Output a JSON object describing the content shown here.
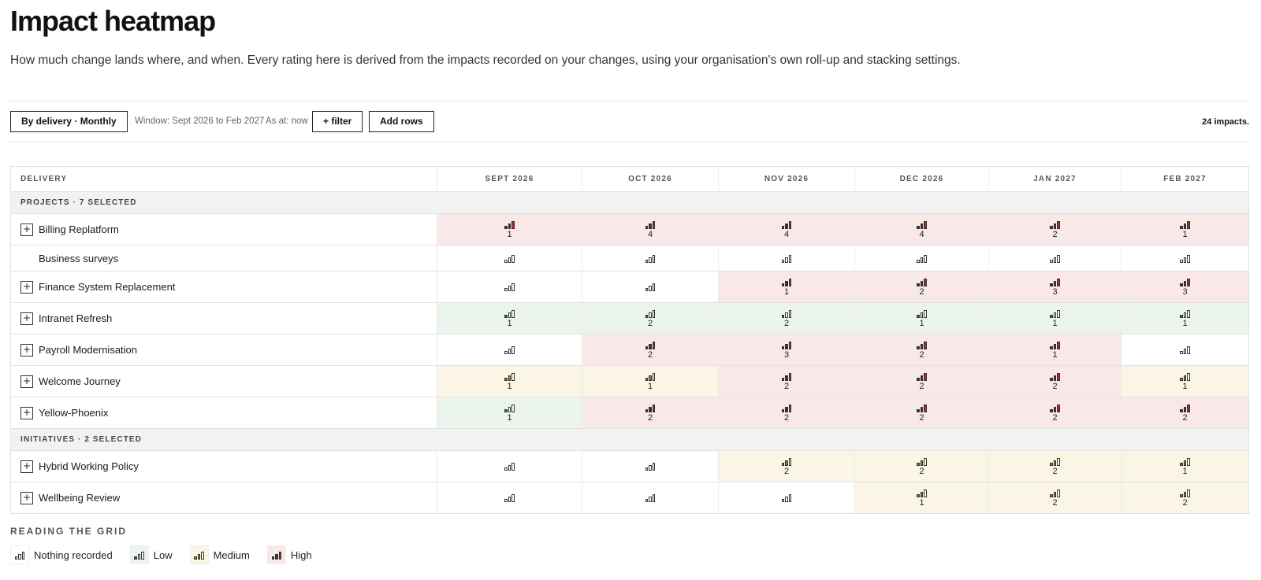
{
  "header": {
    "title": "Impact heatmap",
    "subtitle": "How much change lands where, and when. Every rating here is derived from the impacts recorded on your changes, using your organisation's own roll-up and stacking settings."
  },
  "toolbar": {
    "view_label": "By delivery · Monthly",
    "window_text": "Window: Sept 2026 to Feb 2027",
    "as_at_text": "As at: now",
    "filter_label": "+ filter",
    "add_rows_label": "Add rows",
    "impact_count": "24 impacts."
  },
  "grid": {
    "first_col_header": "DELIVERY",
    "months": [
      "SEPT 2026",
      "OCT 2026",
      "NOV 2026",
      "DEC 2026",
      "JAN 2027",
      "FEB 2027"
    ],
    "groups": [
      {
        "label": "PROJECTS · 7 SELECTED",
        "rows": [
          {
            "name": "Billing Replatform",
            "expandable": true,
            "cells": [
              {
                "level": "high",
                "count": "1"
              },
              {
                "level": "high",
                "count": "4"
              },
              {
                "level": "high",
                "count": "4"
              },
              {
                "level": "high",
                "count": "4"
              },
              {
                "level": "high",
                "count": "2"
              },
              {
                "level": "high",
                "count": "1"
              }
            ]
          },
          {
            "name": "Business surveys",
            "expandable": false,
            "cells": [
              {
                "level": "none",
                "count": ""
              },
              {
                "level": "none",
                "count": ""
              },
              {
                "level": "none",
                "count": ""
              },
              {
                "level": "none",
                "count": ""
              },
              {
                "level": "none",
                "count": ""
              },
              {
                "level": "none",
                "count": ""
              }
            ]
          },
          {
            "name": "Finance System Replacement",
            "expandable": true,
            "cells": [
              {
                "level": "none",
                "count": ""
              },
              {
                "level": "none",
                "count": ""
              },
              {
                "level": "high",
                "count": "1"
              },
              {
                "level": "high",
                "count": "2"
              },
              {
                "level": "high",
                "count": "3"
              },
              {
                "level": "high",
                "count": "3"
              }
            ]
          },
          {
            "name": "Intranet Refresh",
            "expandable": true,
            "cells": [
              {
                "level": "low",
                "count": "1"
              },
              {
                "level": "low",
                "count": "2"
              },
              {
                "level": "low",
                "count": "2"
              },
              {
                "level": "low",
                "count": "1"
              },
              {
                "level": "low",
                "count": "1"
              },
              {
                "level": "low",
                "count": "1"
              }
            ]
          },
          {
            "name": "Payroll Modernisation",
            "expandable": true,
            "cells": [
              {
                "level": "none",
                "count": ""
              },
              {
                "level": "high",
                "count": "2"
              },
              {
                "level": "high",
                "count": "3"
              },
              {
                "level": "high",
                "count": "2"
              },
              {
                "level": "high",
                "count": "1"
              },
              {
                "level": "none",
                "count": ""
              }
            ]
          },
          {
            "name": "Welcome Journey",
            "expandable": true,
            "cells": [
              {
                "level": "medium",
                "count": "1"
              },
              {
                "level": "medium",
                "count": "1"
              },
              {
                "level": "high",
                "count": "2"
              },
              {
                "level": "high",
                "count": "2"
              },
              {
                "level": "high",
                "count": "2"
              },
              {
                "level": "medium",
                "count": "1"
              }
            ]
          },
          {
            "name": "Yellow-Phoenix",
            "expandable": true,
            "cells": [
              {
                "level": "low",
                "count": "1"
              },
              {
                "level": "high",
                "count": "2"
              },
              {
                "level": "high",
                "count": "2"
              },
              {
                "level": "high",
                "count": "2"
              },
              {
                "level": "high",
                "count": "2"
              },
              {
                "level": "high",
                "count": "2"
              }
            ]
          }
        ]
      },
      {
        "label": "INITIATIVES · 2 SELECTED",
        "rows": [
          {
            "name": "Hybrid Working Policy",
            "expandable": true,
            "cells": [
              {
                "level": "none",
                "count": ""
              },
              {
                "level": "none",
                "count": ""
              },
              {
                "level": "medium",
                "count": "2"
              },
              {
                "level": "medium",
                "count": "2"
              },
              {
                "level": "medium",
                "count": "2"
              },
              {
                "level": "medium",
                "count": "1"
              }
            ]
          },
          {
            "name": "Wellbeing Review",
            "expandable": true,
            "cells": [
              {
                "level": "none",
                "count": ""
              },
              {
                "level": "none",
                "count": ""
              },
              {
                "level": "none",
                "count": ""
              },
              {
                "level": "medium",
                "count": "1"
              },
              {
                "level": "medium",
                "count": "2"
              },
              {
                "level": "medium",
                "count": "2"
              }
            ]
          }
        ]
      }
    ]
  },
  "legend": {
    "title": "READING THE GRID",
    "items": [
      {
        "level": "none",
        "label": "Nothing recorded"
      },
      {
        "level": "low",
        "label": "Low"
      },
      {
        "level": "medium",
        "label": "Medium"
      },
      {
        "level": "high",
        "label": "High"
      }
    ]
  },
  "colors": {
    "low_bg": "#ebf5ee",
    "medium_bg": "#fbf5e6",
    "high_bg": "#f9e8e8",
    "high_bar": "#b2272a",
    "low_bar": "#1f7a47",
    "medium_bar": "#a67a16"
  }
}
